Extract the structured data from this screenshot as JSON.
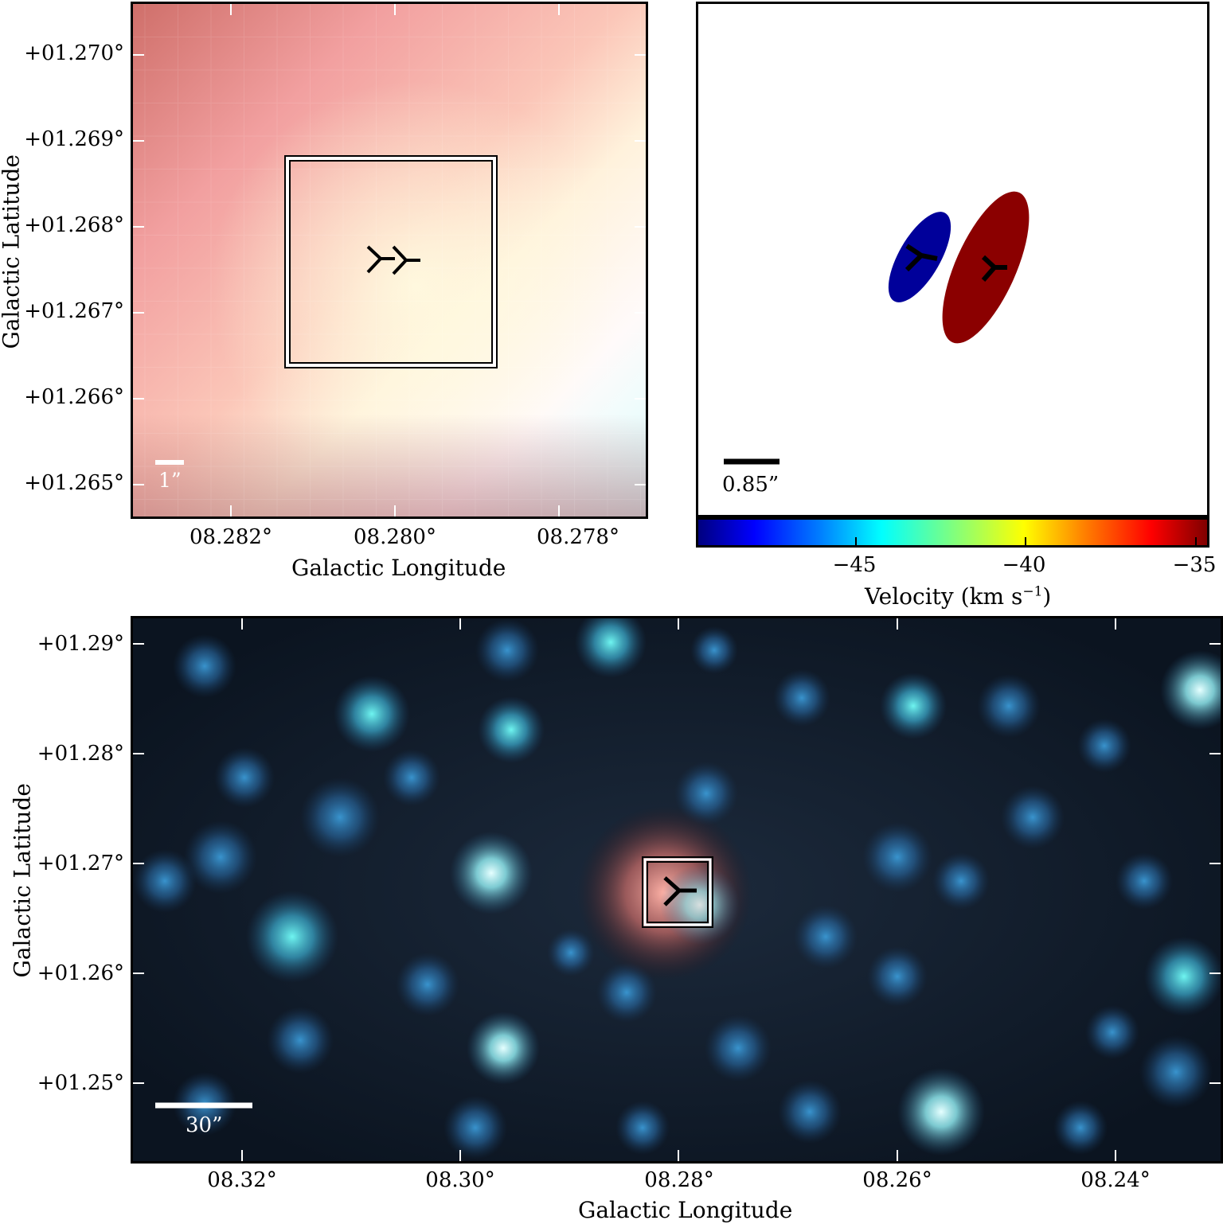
{
  "top_left": {
    "y_ticks": [
      "+01.270°",
      "+01.269°",
      "+01.268°",
      "+01.267°",
      "+01.266°",
      "+01.265°"
    ],
    "x_ticks": [
      "08.282°",
      "08.280°",
      "08.278°"
    ],
    "ylabel": "Galactic Latitude",
    "xlabel": "Galactic Longitude",
    "scalebar_label": "1”"
  },
  "top_right": {
    "scalebar_label": "0.85”",
    "colorbar_ticks": [
      "−45",
      "−40",
      "−35"
    ],
    "colorbar_label": "Velocity (km s",
    "colorbar_label_sup": "−1",
    "colorbar_label_end": ")",
    "colorbar_range": [
      -50,
      -35
    ],
    "blob_colors": {
      "blue": "#00009a",
      "red": "#8b0000"
    }
  },
  "bottom": {
    "y_ticks": [
      "+01.29°",
      "+01.28°",
      "+01.27°",
      "+01.26°",
      "+01.25°"
    ],
    "x_ticks": [
      "08.32°",
      "08.30°",
      "08.28°",
      "08.26°",
      "08.24°"
    ],
    "ylabel": "Galactic Latitude",
    "xlabel": "Galactic Longitude",
    "scalebar_label": "30”"
  }
}
